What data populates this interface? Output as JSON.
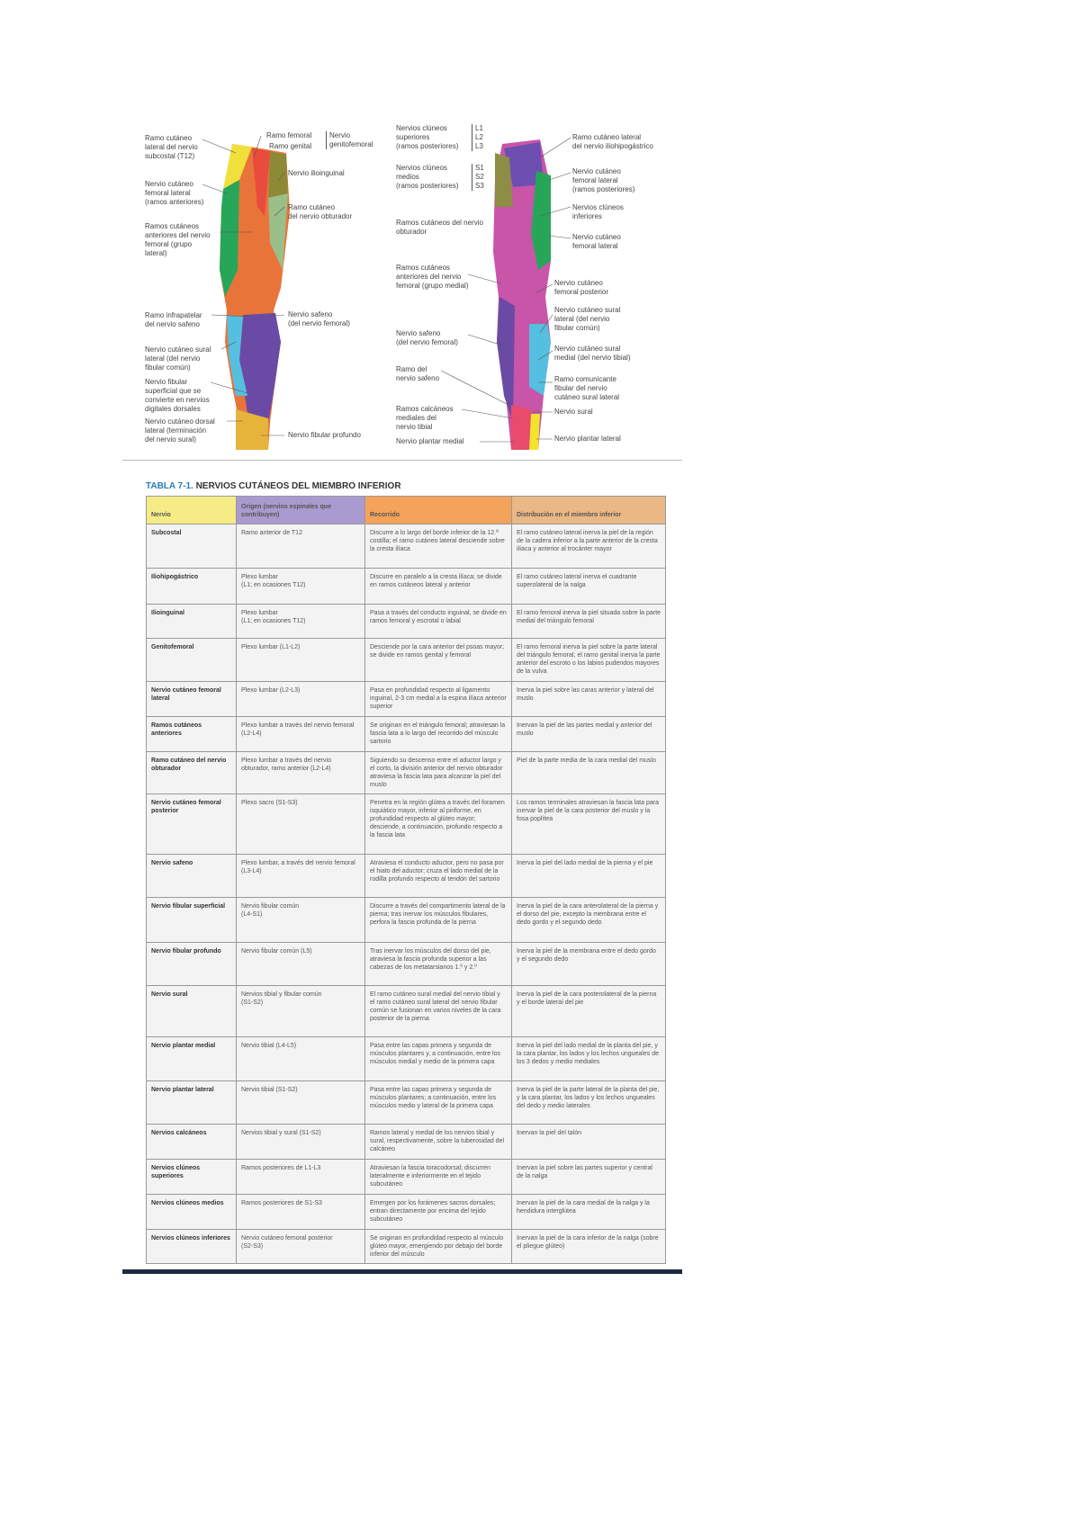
{
  "figure": {
    "anterior_labels": [
      "Ramo cutáneo\nlateral del nervio\nsubcostal (T12)",
      "Ramo femoral",
      "Ramo genital",
      "Nervio\ngenitofemoral",
      "Nervio ilioinguinal",
      "Nervio cutáneo\nfemoral lateral\n(ramos anteriores)",
      "Ramo cutáneo\ndel nervio obturador",
      "Ramos cutáneos\nanteriores del nervio\nfemoral (grupo\nlateral)",
      "Ramo infrapatelar\ndel nervio safeno",
      "Nervio safeno\n(del nervio femoral)",
      "Nervio cutáneo sural\nlateral (del nervio\nfibular común)",
      "Nervio fibular\nsuperficial que se\nconvierte en nervios\ndigitales dorsales",
      "Nervio cutáneo dorsal\nlateral (terminación\ndel nervio sural)",
      "Nervio fibular profundo"
    ],
    "posterior_labels": [
      "Nervios clúneos\nsuperiores\n(ramos posteriores)",
      "L1\nL2\nL3",
      "Nervios clúneos\nmedios\n(ramos posteriores)",
      "S1\nS2\nS3",
      "Ramos cutáneos del nervio\nobturador",
      "Ramos cutáneos\nanteriores del nervio\nfemoral (grupo medial)",
      "Nervio safeno\n(del nervio femoral)",
      "Ramo del\nnervio safeno",
      "Ramos calcáneos\nmediales del\nnervio tibial",
      "Nervio plantar medial",
      "Ramo cutáneo lateral\ndel nervio iliohipogástrico",
      "Nervio cutáneo\nfemoral lateral\n(ramos posteriores)",
      "Nervios clúneos\ninferiores",
      "Nervio cutáneo\nfemoral lateral",
      "Nervio cutáneo\nfemoral posterior",
      "Nervio cutáneo sural\nlateral (del nervio\nfibular común)",
      "Nervio cutáneo sural\nmedial (del nervio tibial)",
      "Ramo comunicante\nfibular del nervio\ncutáneo sural lateral",
      "Nervio sural",
      "Nervio plantar lateral"
    ]
  },
  "table": {
    "number": "TABLA 7-1.",
    "title": "NERVIOS CUTÁNEOS DEL MIEMBRO INFERIOR",
    "header_colors": [
      "#f6ec86",
      "#a99bcf",
      "#f3a35a",
      "#e9b884"
    ],
    "headers": [
      "Nervio",
      "Origen (nervios espinales que contribuyen)",
      "Recorrido",
      "Distribución en el miembro inferior"
    ],
    "rows": [
      [
        "Subcostal",
        "Ramo anterior de T12",
        "Discurre a lo largo del borde inferior de la 12.ª costilla; el ramo cutáneo lateral desciende sobre la cresta ilíaca",
        "El ramo cutáneo lateral inerva la piel de la región de la cadera inferior a la parte anterior de la cresta ilíaca y anterior al trocánter mayor"
      ],
      [
        "Iliohipogástrico",
        "Plexo lumbar\n(L1; en ocasiones T12)",
        "Discurre en paralelo a la cresta ilíaca; se divide en ramos cutáneos lateral y anterior",
        "El ramo cutáneo lateral inerva el cuadrante superolateral de la nalga"
      ],
      [
        "Ilioinguinal",
        "Plexo lumbar\n(L1; en ocasiones T12)",
        "Pasa a través del conducto inguinal, se divide en ramos femoral y escrotal o labial",
        "El ramo femoral inerva la piel situada sobre la parte medial del triángulo femoral"
      ],
      [
        "Genitofemoral",
        "Plexo lumbar (L1-L2)",
        "Desciende por la cara anterior del psoas mayor; se divide en ramos genital y femoral",
        "El ramo femoral inerva la piel sobre la parte lateral del triángulo femoral; el ramo genital inerva la parte anterior del escroto o los labios pudendos mayores de la vulva"
      ],
      [
        "Nervio cutáneo femoral lateral",
        "Plexo lumbar (L2-L3)",
        "Pasa en profundidad respecto al ligamento inguinal, 2-3 cm medial a la espina ilíaca anterior superior",
        "Inerva la piel sobre las caras anterior y lateral del muslo"
      ],
      [
        "Ramos cutáneos anteriores",
        "Plexo lumbar a través del nervio femoral (L2-L4)",
        "Se originan en el triángulo femoral; atraviesan la fascia lata a lo largo del recorrido del músculo sartorio",
        "Inervan la piel de las partes medial y anterior del muslo"
      ],
      [
        "Ramo cutáneo del nervio obturador",
        "Plexo lumbar a través del nervio obturador, ramo anterior (L2-L4)",
        "Siguiendo su descenso entre el aductor largo y el corto, la división anterior del nervio obturador atraviesa la fascia lata para alcanzar la piel del muslo",
        "Piel de la parte media de la cara medial del muslo"
      ],
      [
        "Nervio cutáneo femoral posterior",
        "Plexo sacro (S1-S3)",
        "Penetra en la región glútea a través del foramen isquiático mayor, inferior al piriforme, en profundidad respecto al glúteo mayor; desciende, a continuación, profundo respecto a la fascia lata",
        "Los ramos terminales atraviesan la fascia lata para inervar la piel de la cara posterior del muslo y la fosa poplítea"
      ],
      [
        "Nervio safeno",
        "Plexo lumbar, a través del nervio femoral (L3-L4)",
        "Atraviesa el conducto aductor, pero no pasa por el hiato del aductor; cruza el lado medial de la rodilla profundo respecto al tendón del sartorio",
        "Inerva la piel del lado medial de la pierna y el pie"
      ],
      [
        "Nervio fibular superficial",
        "Nervio fibular común\n(L4-S1)",
        "Discurre a través del compartimento lateral de la pierna; tras inervar los músculos fibulares, perfora la fascia profunda de la pierna",
        "Inerva la piel de la cara anterolateral de la pierna y el dorso del pie, excepto la membrana entre el dedo gordo y el segundo dedo"
      ],
      [
        "Nervio fibular profundo",
        "Nervio fibular común (L5)",
        "Tras inervar los músculos del dorso del pie, atraviesa la fascia profunda superior a las cabezas de los metatarsianos 1.º y 2.º",
        "Inerva la piel de la membrana entre el dedo gordo y el segundo dedo"
      ],
      [
        "Nervio sural",
        "Nervios tibial y fibular común\n(S1-S2)",
        "El ramo cutáneo sural medial del nervio tibial y el ramo cutáneo sural lateral del nervio fibular común se fusionan en varios niveles de la cara posterior de la pierna",
        "Inerva la piel de la cara posterolateral de la pierna y el borde lateral del pie"
      ],
      [
        "Nervio plantar medial",
        "Nervio tibial (L4-L5)",
        "Pasa entre las capas primera y segunda de músculos plantares y, a continuación, entre los músculos medial y medio de la primera capa",
        "Inerva la piel del lado medial de la planta del pie, y la cara plantar, los lados y los lechos ungueales de los 3 dedos y medio mediales"
      ],
      [
        "Nervio plantar lateral",
        "Nervio tibial (S1-S2)",
        "Pasa entre las capas primera y segunda de músculos plantares; a continuación, entre los músculos medio y lateral de la primera capa",
        "Inerva la piel de la parte lateral de la planta del pie, y la cara plantar, los lados y los lechos ungueales del dedo y medio laterales"
      ],
      [
        "Nervios calcáneos",
        "Nervios tibial y sural (S1-S2)",
        "Ramos lateral y medial de los nervios tibial y sural, respectivamente, sobre la tuberosidad del calcáneo",
        "Inervan la piel del talón"
      ],
      [
        "Nervios clúneos superiores",
        "Ramos posteriores de L1-L3",
        "Atraviesan la fascia toracodorsal; discurren lateralmente e inferiormente en el tejido subcutáneo",
        "Inervan la piel sobre las partes superior y central de la nalga"
      ],
      [
        "Nervios clúneos medios",
        "Ramos posteriores de S1-S3",
        "Emergen por los forámenes sacros dorsales; entran directamente por encima del tejido subcutáneo",
        "Inervan la piel de la cara medial de la nalga y la hendidura interglútea"
      ],
      [
        "Nervios clúneos inferiores",
        "Nervio cutáneo femoral posterior\n(S2-S3)",
        "Se originan en profundidad respecto al músculo glúteo mayor, emergiendo por debajo del borde inferior del músculo",
        "Inervan la piel de la cara inferior de la nalga (sobre el pliegue glúteo)"
      ]
    ]
  }
}
